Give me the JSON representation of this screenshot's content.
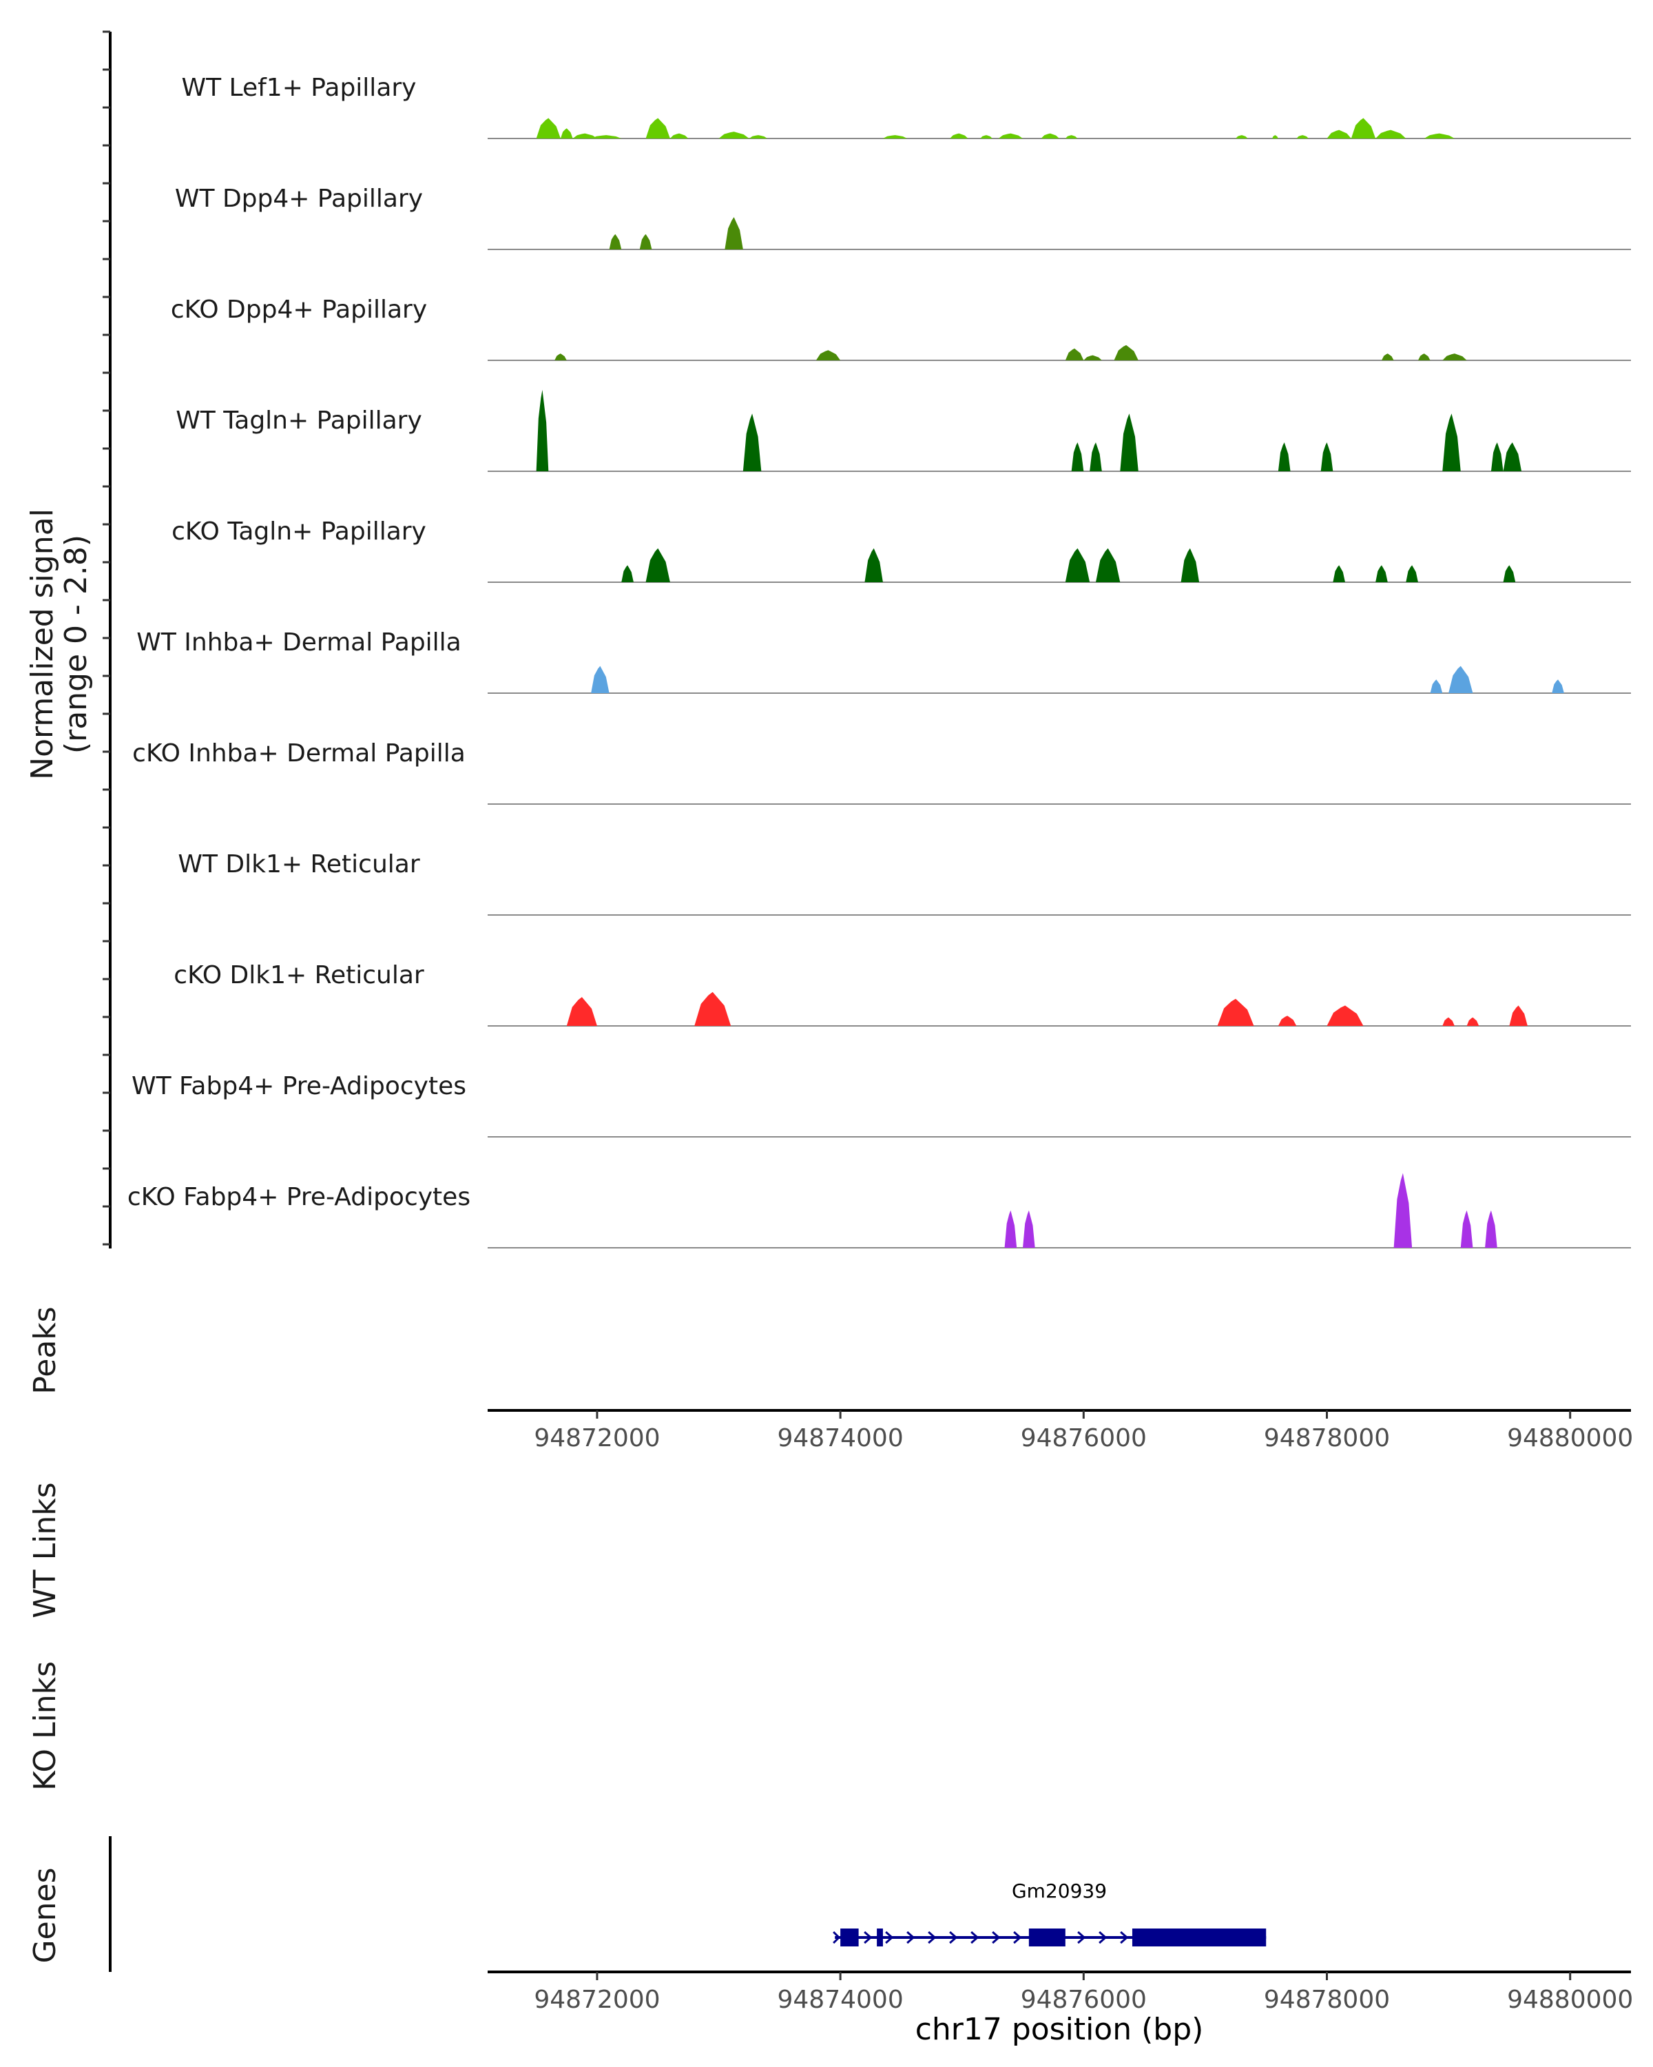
{
  "chart_data": {
    "type": "area",
    "title": "",
    "chromosome": "chr17",
    "xlabel": "chr17 position (bp)",
    "xlim": [
      94871100,
      94880500
    ],
    "xticks": [
      "94872000",
      "94874000",
      "94876000",
      "94878000",
      "94880000"
    ],
    "xtick_values": [
      94872000,
      94874000,
      94876000,
      94878000,
      94880000
    ],
    "signal_ylabel": [
      "Normalized signal",
      "(range 0 - 2.8)"
    ],
    "ylim": [
      0,
      2.8
    ],
    "tracks": [
      {
        "name": "WT Lef1+ Papillary",
        "color": "#66cc00",
        "regions": [
          {
            "start": 94871500,
            "end": 94871700,
            "peak": 0.6
          },
          {
            "start": 94871700,
            "end": 94871800,
            "peak": 0.3
          },
          {
            "start": 94871800,
            "end": 94872000,
            "peak": 0.15
          },
          {
            "start": 94871950,
            "end": 94872200,
            "peak": 0.1
          },
          {
            "start": 94872400,
            "end": 94872600,
            "peak": 0.6
          },
          {
            "start": 94872600,
            "end": 94872750,
            "peak": 0.15
          },
          {
            "start": 94873000,
            "end": 94873250,
            "peak": 0.2
          },
          {
            "start": 94873250,
            "end": 94873400,
            "peak": 0.1
          },
          {
            "start": 94874350,
            "end": 94874550,
            "peak": 0.1
          },
          {
            "start": 94874900,
            "end": 94875050,
            "peak": 0.15
          },
          {
            "start": 94875150,
            "end": 94875250,
            "peak": 0.1
          },
          {
            "start": 94875300,
            "end": 94875500,
            "peak": 0.15
          },
          {
            "start": 94875650,
            "end": 94875800,
            "peak": 0.15
          },
          {
            "start": 94875850,
            "end": 94875950,
            "peak": 0.1
          },
          {
            "start": 94877250,
            "end": 94877350,
            "peak": 0.1
          },
          {
            "start": 94877550,
            "end": 94877600,
            "peak": 0.1
          },
          {
            "start": 94877750,
            "end": 94877850,
            "peak": 0.1
          },
          {
            "start": 94878000,
            "end": 94878200,
            "peak": 0.25
          },
          {
            "start": 94878200,
            "end": 94878400,
            "peak": 0.6
          },
          {
            "start": 94878400,
            "end": 94878650,
            "peak": 0.25
          },
          {
            "start": 94878800,
            "end": 94879050,
            "peak": 0.15
          }
        ]
      },
      {
        "name": "WT Dpp4+ Papillary",
        "color": "#4a8a08",
        "regions": [
          {
            "start": 94872100,
            "end": 94872200,
            "peak": 0.45
          },
          {
            "start": 94872350,
            "end": 94872450,
            "peak": 0.45
          },
          {
            "start": 94873050,
            "end": 94873200,
            "peak": 0.95
          }
        ]
      },
      {
        "name": "cKO Dpp4+ Papillary",
        "color": "#4a8a08",
        "regions": [
          {
            "start": 94871650,
            "end": 94871750,
            "peak": 0.2
          },
          {
            "start": 94873800,
            "end": 94874000,
            "peak": 0.3
          },
          {
            "start": 94875850,
            "end": 94876000,
            "peak": 0.35
          },
          {
            "start": 94876000,
            "end": 94876150,
            "peak": 0.15
          },
          {
            "start": 94876250,
            "end": 94876450,
            "peak": 0.45
          },
          {
            "start": 94878450,
            "end": 94878550,
            "peak": 0.2
          },
          {
            "start": 94878750,
            "end": 94878850,
            "peak": 0.2
          },
          {
            "start": 94878950,
            "end": 94879150,
            "peak": 0.2
          }
        ]
      },
      {
        "name": "WT Tagln+ Papillary",
        "color": "#006400",
        "regions": [
          {
            "start": 94871500,
            "end": 94871600,
            "peak": 2.4
          },
          {
            "start": 94873200,
            "end": 94873350,
            "peak": 1.7
          },
          {
            "start": 94875900,
            "end": 94876000,
            "peak": 0.85
          },
          {
            "start": 94876050,
            "end": 94876150,
            "peak": 0.85
          },
          {
            "start": 94876300,
            "end": 94876450,
            "peak": 1.7
          },
          {
            "start": 94877600,
            "end": 94877700,
            "peak": 0.85
          },
          {
            "start": 94877950,
            "end": 94878050,
            "peak": 0.85
          },
          {
            "start": 94878950,
            "end": 94879100,
            "peak": 1.7
          },
          {
            "start": 94879350,
            "end": 94879450,
            "peak": 0.85
          },
          {
            "start": 94879450,
            "end": 94879600,
            "peak": 0.85
          }
        ]
      },
      {
        "name": "cKO Tagln+ Papillary",
        "color": "#006400",
        "regions": [
          {
            "start": 94872200,
            "end": 94872300,
            "peak": 0.5
          },
          {
            "start": 94872400,
            "end": 94872600,
            "peak": 1.0
          },
          {
            "start": 94874200,
            "end": 94874350,
            "peak": 1.0
          },
          {
            "start": 94875850,
            "end": 94876050,
            "peak": 1.0
          },
          {
            "start": 94876100,
            "end": 94876300,
            "peak": 1.0
          },
          {
            "start": 94876800,
            "end": 94876950,
            "peak": 1.0
          },
          {
            "start": 94878050,
            "end": 94878150,
            "peak": 0.5
          },
          {
            "start": 94878400,
            "end": 94878500,
            "peak": 0.5
          },
          {
            "start": 94878650,
            "end": 94878750,
            "peak": 0.5
          },
          {
            "start": 94879450,
            "end": 94879550,
            "peak": 0.5
          }
        ]
      },
      {
        "name": "WT Inhba+ Dermal Papilla",
        "color": "#5ba3e0",
        "regions": [
          {
            "start": 94871950,
            "end": 94872100,
            "peak": 0.8
          },
          {
            "start": 94878850,
            "end": 94878950,
            "peak": 0.4
          },
          {
            "start": 94879000,
            "end": 94879200,
            "peak": 0.8
          },
          {
            "start": 94879850,
            "end": 94879950,
            "peak": 0.4
          }
        ]
      },
      {
        "name": "cKO Inhba+ Dermal Papilla",
        "color": "#5ba3e0",
        "regions": []
      },
      {
        "name": "WT Dlk1+ Reticular",
        "color": "#ff2a2a",
        "regions": []
      },
      {
        "name": "cKO Dlk1+ Reticular",
        "color": "#ff2a2a",
        "regions": [
          {
            "start": 94871750,
            "end": 94872000,
            "peak": 0.85
          },
          {
            "start": 94872800,
            "end": 94873100,
            "peak": 1.0
          },
          {
            "start": 94877100,
            "end": 94877400,
            "peak": 0.8
          },
          {
            "start": 94877600,
            "end": 94877750,
            "peak": 0.3
          },
          {
            "start": 94878000,
            "end": 94878300,
            "peak": 0.6
          },
          {
            "start": 94878950,
            "end": 94879050,
            "peak": 0.25
          },
          {
            "start": 94879150,
            "end": 94879250,
            "peak": 0.25
          },
          {
            "start": 94879500,
            "end": 94879650,
            "peak": 0.6
          }
        ]
      },
      {
        "name": "WT Fabp4+ Pre-Adipocytes",
        "color": "#a832e6",
        "regions": []
      },
      {
        "name": "cKO Fabp4+ Pre-Adipocytes",
        "color": "#a832e6",
        "regions": [
          {
            "start": 94875350,
            "end": 94875450,
            "peak": 1.1
          },
          {
            "start": 94875500,
            "end": 94875600,
            "peak": 1.1
          },
          {
            "start": 94878550,
            "end": 94878700,
            "peak": 2.2
          },
          {
            "start": 94879100,
            "end": 94879200,
            "peak": 1.1
          },
          {
            "start": 94879300,
            "end": 94879400,
            "peak": 1.1
          }
        ]
      }
    ],
    "peaks_label": "Peaks",
    "peaks": [],
    "wt_links_label": "WT Links",
    "ko_links_label": "KO Links",
    "genes_label": "Genes",
    "gene": {
      "name": "Gm20939",
      "color": "#00008b",
      "start": 94874000,
      "end": 94877500,
      "strand": "+",
      "exons": [
        [
          94874000,
          94874150
        ],
        [
          94874300,
          94874350
        ],
        [
          94875550,
          94875850
        ],
        [
          94876400,
          94877500
        ]
      ]
    }
  }
}
